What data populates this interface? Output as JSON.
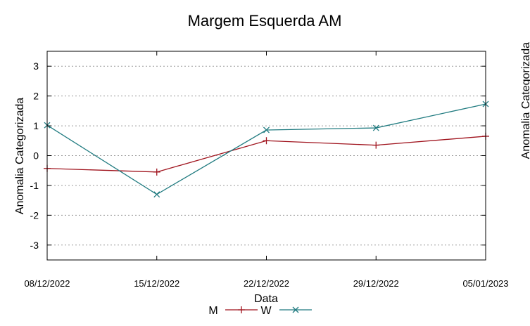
{
  "chart_data": {
    "type": "line",
    "title": "Margem Esquerda AM",
    "xlabel": "Data",
    "ylabel": "Anomalia Categorizada",
    "right_ylabel_partial": "Anomalia Categorizada",
    "categories": [
      "08/12/2022",
      "15/12/2022",
      "22/12/2022",
      "29/12/2022",
      "05/01/2023"
    ],
    "ylim": [
      -3.5,
      3.5
    ],
    "yticks": [
      3,
      2,
      1,
      0,
      -1,
      -2,
      -3
    ],
    "grid": true,
    "legend_position": "bottom-center",
    "series": [
      {
        "name": "M",
        "color": "#a0141e",
        "marker": "plus",
        "values": [
          -0.43,
          -0.55,
          0.5,
          0.35,
          0.65
        ]
      },
      {
        "name": "W",
        "color": "#207b80",
        "marker": "cross",
        "values": [
          1.02,
          -1.3,
          0.86,
          0.93,
          1.73
        ]
      }
    ]
  }
}
